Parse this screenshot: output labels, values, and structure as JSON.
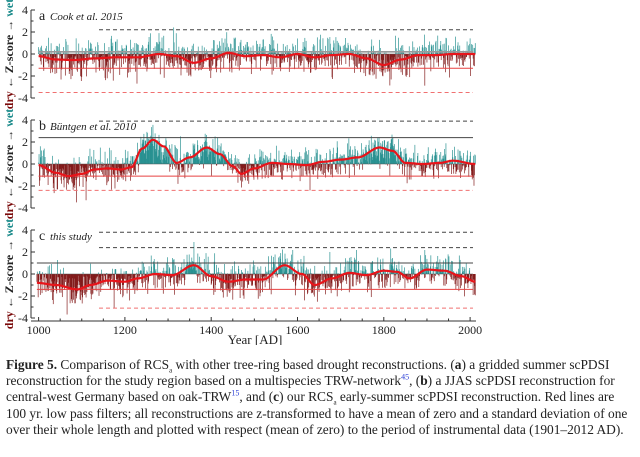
{
  "chart_data": {
    "type": "bar",
    "title": "Comparison of RCSa with other tree-ring based drought reconstructions",
    "xlabel": "Year [AD]",
    "x_ticks": [
      "1000",
      "1200",
      "1400",
      "1600",
      "1800",
      "2000"
    ],
    "xlim": [
      996,
      2012
    ],
    "ylim": [
      -4,
      4
    ],
    "y_ticks": [
      "4",
      "2",
      "0",
      "-2",
      "-4"
    ],
    "ylabel": {
      "dry": "dry",
      "left_arrow": "←",
      "middle": "Z-score",
      "right_arrow": "→",
      "wet": "wet"
    },
    "colors": {
      "wet": "#1a8a8a",
      "dry": "#7a0a0a",
      "lowpass": "#e8141a",
      "ref_black": "#444444",
      "ref_red": "#e84040"
    },
    "panels": [
      {
        "letter": "a",
        "source": "Cook et al. 2015",
        "start_year": 1000,
        "end_year": 2012,
        "lowpass": [
          [
            1000,
            -0.2
          ],
          [
            1040,
            -0.5
          ],
          [
            1080,
            -0.55
          ],
          [
            1130,
            -0.4
          ],
          [
            1180,
            -0.3
          ],
          [
            1230,
            -0.3
          ],
          [
            1280,
            0.0
          ],
          [
            1320,
            -0.2
          ],
          [
            1360,
            -0.8
          ],
          [
            1400,
            -0.4
          ],
          [
            1440,
            0.1
          ],
          [
            1480,
            -0.2
          ],
          [
            1520,
            -0.1
          ],
          [
            1560,
            -0.3
          ],
          [
            1600,
            0.0
          ],
          [
            1640,
            -0.3
          ],
          [
            1680,
            -0.1
          ],
          [
            1720,
            0.0
          ],
          [
            1760,
            -0.4
          ],
          [
            1800,
            -1.0
          ],
          [
            1840,
            -0.5
          ],
          [
            1880,
            -0.1
          ],
          [
            1920,
            -0.1
          ],
          [
            1960,
            0.0
          ],
          [
            2012,
            0.0
          ]
        ],
        "amplitude": 1.1,
        "ref_lines": [
          {
            "value": 2.2,
            "style": "dashed",
            "color": "black",
            "from_year": 1140
          },
          {
            "value": 0.2,
            "style": "solid",
            "color": "grey",
            "from_year": 1000
          },
          {
            "value": -1.3,
            "style": "solid",
            "color": "red",
            "from_year": 1000
          },
          {
            "value": -3.5,
            "style": "dashed",
            "color": "red",
            "from_year": 1000
          }
        ]
      },
      {
        "letter": "b",
        "source": "Büntgen et al. 2010",
        "start_year": 1000,
        "end_year": 2012,
        "lowpass": [
          [
            1000,
            -0.1
          ],
          [
            1040,
            -0.8
          ],
          [
            1070,
            -1.1
          ],
          [
            1100,
            -0.9
          ],
          [
            1130,
            -0.5
          ],
          [
            1160,
            -0.4
          ],
          [
            1190,
            -0.5
          ],
          [
            1215,
            -0.3
          ],
          [
            1240,
            1.4
          ],
          [
            1265,
            2.2
          ],
          [
            1290,
            1.6
          ],
          [
            1320,
            0.1
          ],
          [
            1350,
            0.6
          ],
          [
            1390,
            1.5
          ],
          [
            1420,
            0.9
          ],
          [
            1450,
            -0.2
          ],
          [
            1470,
            -0.9
          ],
          [
            1500,
            -0.4
          ],
          [
            1540,
            0.1
          ],
          [
            1580,
            0.0
          ],
          [
            1620,
            -0.1
          ],
          [
            1660,
            0.2
          ],
          [
            1700,
            0.4
          ],
          [
            1740,
            0.6
          ],
          [
            1790,
            1.5
          ],
          [
            1820,
            1.2
          ],
          [
            1850,
            0.1
          ],
          [
            1890,
            0.0
          ],
          [
            1930,
            0.1
          ],
          [
            1960,
            0.3
          ],
          [
            2012,
            0.0
          ]
        ],
        "amplitude": 1.0,
        "ref_lines": [
          {
            "value": 3.9,
            "style": "dashed",
            "color": "black",
            "from_year": 1140
          },
          {
            "value": 2.4,
            "style": "solid",
            "color": "black",
            "from_year": 1000
          },
          {
            "value": -1.1,
            "style": "solid",
            "color": "red",
            "from_year": 1000
          },
          {
            "value": -2.4,
            "style": "dashed",
            "color": "red",
            "from_year": 1000
          }
        ]
      },
      {
        "letter": "c",
        "source": "this study",
        "start_year": 996,
        "end_year": 2012,
        "lowpass": [
          [
            996,
            -0.8
          ],
          [
            1040,
            -1.0
          ],
          [
            1090,
            -1.4
          ],
          [
            1120,
            -1.0
          ],
          [
            1160,
            -0.6
          ],
          [
            1200,
            -0.7
          ],
          [
            1230,
            -0.4
          ],
          [
            1270,
            0.0
          ],
          [
            1310,
            -0.1
          ],
          [
            1360,
            0.8
          ],
          [
            1400,
            -0.2
          ],
          [
            1440,
            -0.7
          ],
          [
            1480,
            -0.5
          ],
          [
            1520,
            -0.5
          ],
          [
            1570,
            0.8
          ],
          [
            1610,
            0.0
          ],
          [
            1640,
            -1.0
          ],
          [
            1680,
            -0.4
          ],
          [
            1720,
            0.1
          ],
          [
            1760,
            -0.1
          ],
          [
            1800,
            0.3
          ],
          [
            1830,
            0.2
          ],
          [
            1860,
            -0.4
          ],
          [
            1900,
            0.4
          ],
          [
            1940,
            0.3
          ],
          [
            1980,
            -0.2
          ],
          [
            2012,
            -0.7
          ]
        ],
        "amplitude": 1.05,
        "ref_lines": [
          {
            "value": 3.8,
            "style": "dashed",
            "color": "black",
            "from_year": 1140
          },
          {
            "value": 2.4,
            "style": "dashed",
            "color": "black",
            "from_year": 1140
          },
          {
            "value": 1.0,
            "style": "solid",
            "color": "black",
            "from_year": 996
          },
          {
            "value": -1.4,
            "style": "solid",
            "color": "red",
            "from_year": 996
          },
          {
            "value": -3.1,
            "style": "dashed",
            "color": "red",
            "from_year": 1140
          }
        ]
      }
    ]
  },
  "caption": {
    "label": "Figure 5.",
    "text_1": " Comparison of RCS",
    "sub_a": "a",
    "text_2": " with other tree-ring based drought reconstructions. (",
    "a": "a",
    "text_3": ") a gridded summer scPDSI reconstruction for the study region based on a multispecies TRW-network",
    "ref_45": "45",
    "text_4": ", (",
    "b": "b",
    "text_5": ") a JJAS scPDSI reconstruction for central-west Germany based on oak-TRW",
    "ref_15": "15",
    "text_6": ", and (",
    "c": "c",
    "text_7": ") our RCS",
    "sub_a2": "a",
    "text_8": " early-summer scPDSI reconstruction. Red lines are 100 yr. low pass filters; all reconstructions are z-transformed to have a mean of zero and a standard deviation of one over their whole length and plotted with respect (mean of zero) to the period of instrumental data (1901–2012 AD)."
  }
}
